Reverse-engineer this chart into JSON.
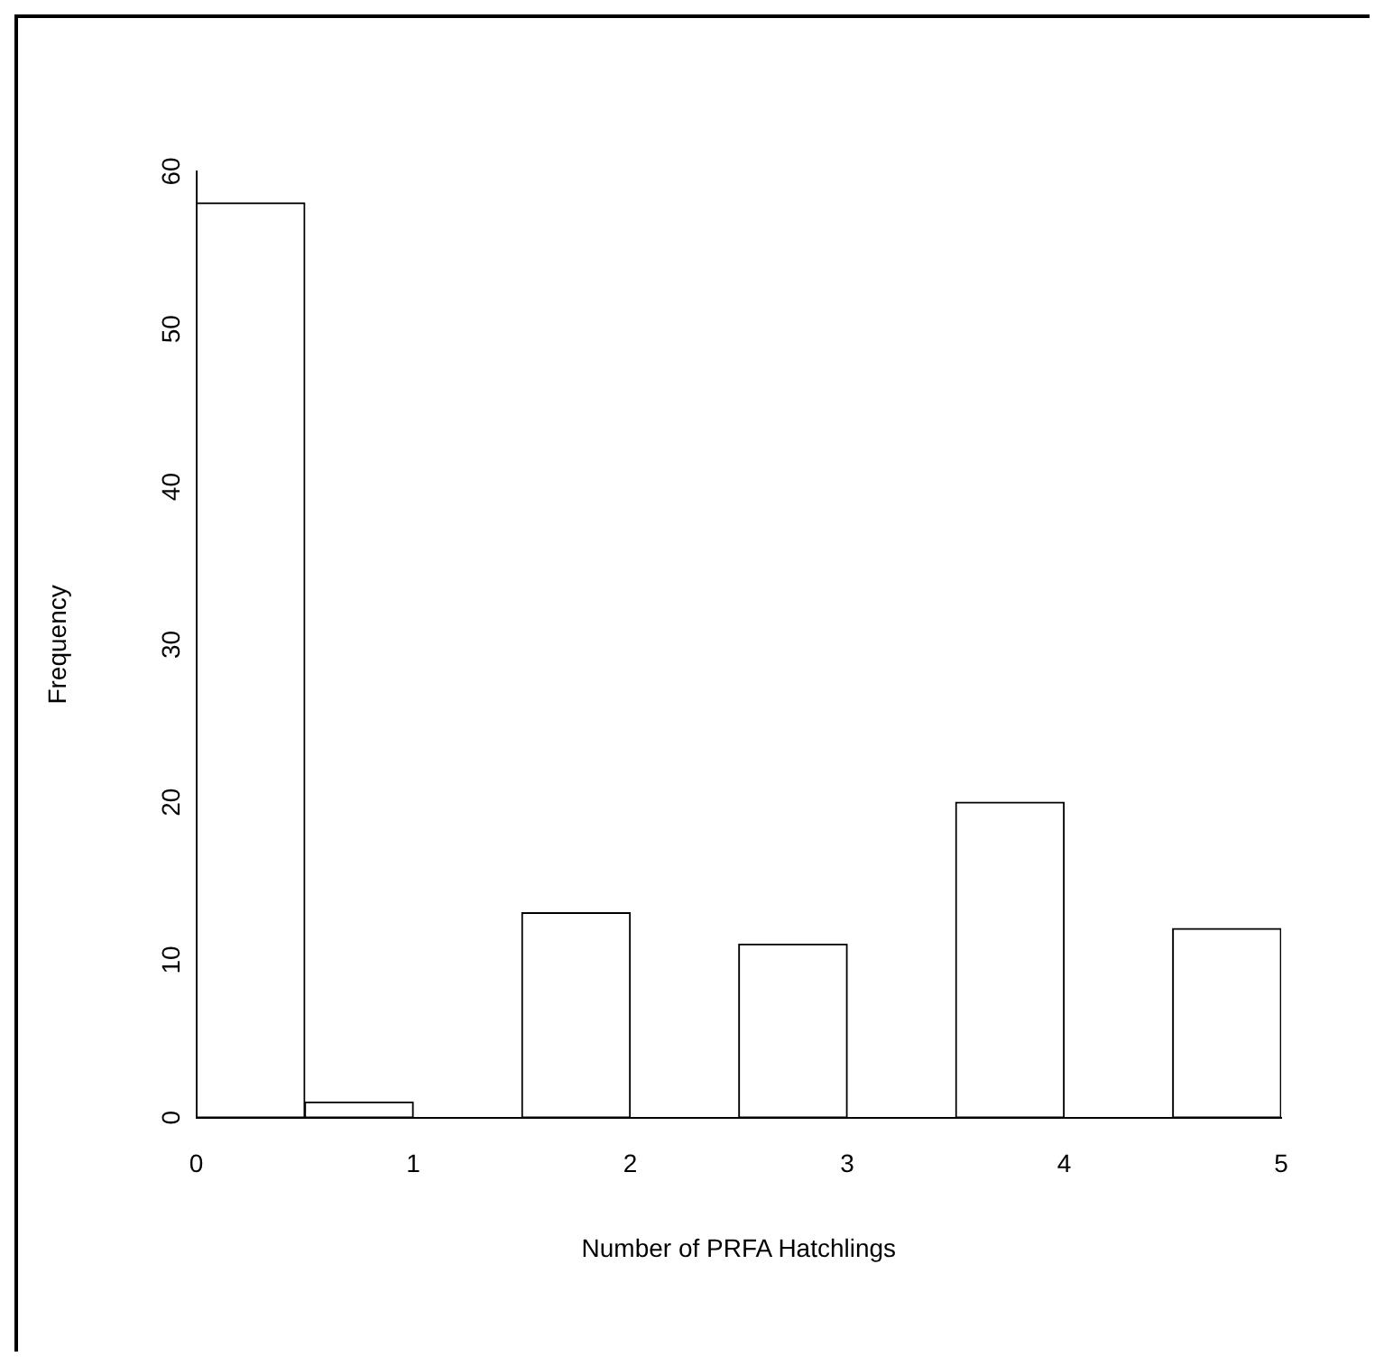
{
  "chart_data": {
    "type": "histogram",
    "xlabel": "Number of PRFA Hatchlings",
    "ylabel": "Frequency",
    "bins": [
      0,
      0.5,
      1,
      1.5,
      2,
      2.5,
      3,
      3.5,
      4,
      4.5,
      5
    ],
    "values": [
      58,
      1,
      0,
      13,
      0,
      11,
      0,
      20,
      0,
      12
    ],
    "color": "#ffffff",
    "xlim": [
      0,
      5
    ],
    "xticks": [
      0,
      1,
      2,
      3,
      4,
      5
    ],
    "ylim": [
      0,
      60
    ],
    "yticks": [
      0,
      10,
      20,
      30,
      40,
      50,
      60
    ],
    "grid": false,
    "legend": false
  }
}
